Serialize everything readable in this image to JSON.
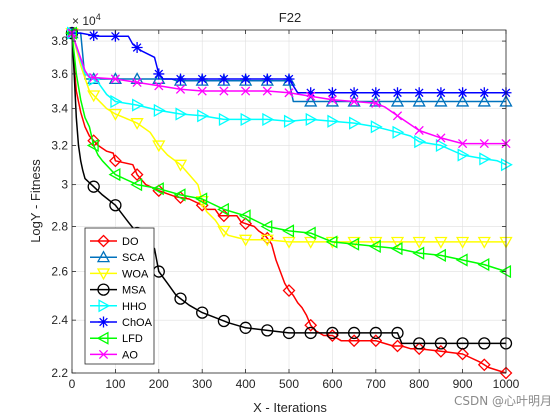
{
  "chart_data": {
    "type": "line",
    "title": "F22",
    "xlabel": "X - Iterations",
    "ylabel": "LogY - Fitness",
    "y_exponent_label": "× 10",
    "y_exponent_power": "4",
    "xlim": [
      0,
      1000
    ],
    "ylim": [
      2.2,
      3.87
    ],
    "y_scale": "log",
    "grid": true,
    "legend_position": "bottom-left",
    "x_ticks": [
      0,
      100,
      200,
      300,
      400,
      500,
      600,
      700,
      800,
      900,
      1000
    ],
    "x_tick_labels": [
      "0",
      "100",
      "200",
      "300",
      "400",
      "500",
      "600",
      "700",
      "800",
      "900",
      "1000"
    ],
    "y_ticks": [
      2.2,
      2.4,
      2.6,
      2.8,
      3.0,
      3.2,
      3.4,
      3.6,
      3.8
    ],
    "y_tick_labels": [
      "2.2",
      "2.4",
      "2.6",
      "2.8",
      "3",
      "3.2",
      "3.4",
      "3.6",
      "3.8"
    ],
    "series": [
      {
        "name": "DO",
        "color": "#ff0000",
        "marker": "diamond",
        "points": [
          [
            0,
            3.85
          ],
          [
            5,
            3.65
          ],
          [
            10,
            3.5
          ],
          [
            20,
            3.38
          ],
          [
            30,
            3.3
          ],
          [
            40,
            3.25
          ],
          [
            60,
            3.2
          ],
          [
            80,
            3.17
          ],
          [
            95,
            3.16
          ],
          [
            100,
            3.12
          ],
          [
            140,
            3.1
          ],
          [
            150,
            3.05
          ],
          [
            170,
            3.0
          ],
          [
            200,
            2.97
          ],
          [
            240,
            2.94
          ],
          [
            270,
            2.93
          ],
          [
            300,
            2.9
          ],
          [
            310,
            2.88
          ],
          [
            330,
            2.88
          ],
          [
            340,
            2.85
          ],
          [
            380,
            2.85
          ],
          [
            390,
            2.82
          ],
          [
            420,
            2.8
          ],
          [
            430,
            2.78
          ],
          [
            445,
            2.76
          ],
          [
            460,
            2.72
          ],
          [
            470,
            2.65
          ],
          [
            480,
            2.6
          ],
          [
            490,
            2.55
          ],
          [
            500,
            2.52
          ],
          [
            510,
            2.5
          ],
          [
            520,
            2.47
          ],
          [
            530,
            2.45
          ],
          [
            540,
            2.42
          ],
          [
            550,
            2.38
          ],
          [
            560,
            2.36
          ],
          [
            580,
            2.34
          ],
          [
            600,
            2.34
          ],
          [
            620,
            2.32
          ],
          [
            700,
            2.32
          ],
          [
            740,
            2.3
          ],
          [
            760,
            2.3
          ],
          [
            780,
            2.29
          ],
          [
            800,
            2.29
          ],
          [
            850,
            2.28
          ],
          [
            900,
            2.27
          ],
          [
            940,
            2.24
          ],
          [
            960,
            2.22
          ],
          [
            1000,
            2.2
          ]
        ]
      },
      {
        "name": "SCA",
        "color": "#0072bd",
        "marker": "triangle-up",
        "points": [
          [
            0,
            3.85
          ],
          [
            20,
            3.85
          ],
          [
            30,
            3.57
          ],
          [
            200,
            3.57
          ],
          [
            230,
            3.57
          ],
          [
            240,
            3.56
          ],
          [
            500,
            3.56
          ],
          [
            510,
            3.44
          ],
          [
            1000,
            3.44
          ]
        ]
      },
      {
        "name": "WOA",
        "color": "#ffff00",
        "marker": "triangle-down",
        "points": [
          [
            0,
            3.85
          ],
          [
            20,
            3.65
          ],
          [
            40,
            3.5
          ],
          [
            60,
            3.45
          ],
          [
            80,
            3.4
          ],
          [
            100,
            3.37
          ],
          [
            120,
            3.35
          ],
          [
            150,
            3.32
          ],
          [
            180,
            3.27
          ],
          [
            200,
            3.2
          ],
          [
            220,
            3.15
          ],
          [
            250,
            3.1
          ],
          [
            270,
            3.05
          ],
          [
            290,
            3.0
          ],
          [
            300,
            2.92
          ],
          [
            310,
            2.87
          ],
          [
            320,
            2.85
          ],
          [
            330,
            2.83
          ],
          [
            340,
            2.8
          ],
          [
            350,
            2.78
          ],
          [
            360,
            2.76
          ],
          [
            380,
            2.75
          ],
          [
            400,
            2.74
          ],
          [
            450,
            2.74
          ],
          [
            500,
            2.73
          ],
          [
            1000,
            2.73
          ]
        ]
      },
      {
        "name": "MSA",
        "color": "#000000",
        "marker": "circle",
        "points": [
          [
            0,
            3.85
          ],
          [
            5,
            3.6
          ],
          [
            10,
            3.35
          ],
          [
            15,
            3.2
          ],
          [
            20,
            3.12
          ],
          [
            25,
            3.07
          ],
          [
            30,
            3.03
          ],
          [
            50,
            2.99
          ],
          [
            70,
            2.95
          ],
          [
            100,
            2.9
          ],
          [
            130,
            2.82
          ],
          [
            150,
            2.77
          ],
          [
            170,
            2.73
          ],
          [
            190,
            2.7
          ],
          [
            200,
            2.6
          ],
          [
            220,
            2.55
          ],
          [
            240,
            2.5
          ],
          [
            270,
            2.46
          ],
          [
            300,
            2.43
          ],
          [
            330,
            2.41
          ],
          [
            360,
            2.39
          ],
          [
            400,
            2.37
          ],
          [
            450,
            2.36
          ],
          [
            500,
            2.35
          ],
          [
            550,
            2.35
          ],
          [
            700,
            2.35
          ],
          [
            750,
            2.35
          ],
          [
            760,
            2.31
          ],
          [
            1000,
            2.31
          ]
        ]
      },
      {
        "name": "HHO",
        "color": "#00ffff",
        "marker": "triangle-right",
        "points": [
          [
            0,
            3.85
          ],
          [
            30,
            3.6
          ],
          [
            60,
            3.55
          ],
          [
            80,
            3.48
          ],
          [
            100,
            3.44
          ],
          [
            150,
            3.42
          ],
          [
            200,
            3.39
          ],
          [
            250,
            3.37
          ],
          [
            300,
            3.36
          ],
          [
            350,
            3.34
          ],
          [
            400,
            3.34
          ],
          [
            450,
            3.34
          ],
          [
            500,
            3.33
          ],
          [
            550,
            3.34
          ],
          [
            600,
            3.33
          ],
          [
            650,
            3.32
          ],
          [
            700,
            3.3
          ],
          [
            750,
            3.27
          ],
          [
            780,
            3.25
          ],
          [
            800,
            3.22
          ],
          [
            850,
            3.2
          ],
          [
            900,
            3.15
          ],
          [
            950,
            3.13
          ],
          [
            980,
            3.12
          ],
          [
            1000,
            3.1
          ]
        ]
      },
      {
        "name": "ChOA",
        "color": "#0000ff",
        "marker": "star",
        "points": [
          [
            0,
            3.85
          ],
          [
            20,
            3.85
          ],
          [
            60,
            3.83
          ],
          [
            130,
            3.83
          ],
          [
            140,
            3.78
          ],
          [
            160,
            3.74
          ],
          [
            190,
            3.7
          ],
          [
            200,
            3.6
          ],
          [
            210,
            3.57
          ],
          [
            500,
            3.57
          ],
          [
            520,
            3.49
          ],
          [
            1000,
            3.49
          ]
        ]
      },
      {
        "name": "LFD",
        "color": "#00ff00",
        "marker": "triangle-left",
        "points": [
          [
            0,
            3.85
          ],
          [
            10,
            3.6
          ],
          [
            20,
            3.45
          ],
          [
            30,
            3.35
          ],
          [
            40,
            3.3
          ],
          [
            50,
            3.2
          ],
          [
            60,
            3.15
          ],
          [
            70,
            3.12
          ],
          [
            100,
            3.05
          ],
          [
            150,
            3.0
          ],
          [
            200,
            2.98
          ],
          [
            250,
            2.95
          ],
          [
            300,
            2.93
          ],
          [
            350,
            2.88
          ],
          [
            400,
            2.85
          ],
          [
            450,
            2.8
          ],
          [
            500,
            2.78
          ],
          [
            550,
            2.77
          ],
          [
            600,
            2.73
          ],
          [
            650,
            2.72
          ],
          [
            700,
            2.71
          ],
          [
            750,
            2.7
          ],
          [
            800,
            2.68
          ],
          [
            850,
            2.67
          ],
          [
            900,
            2.65
          ],
          [
            950,
            2.63
          ],
          [
            1000,
            2.6
          ]
        ]
      },
      {
        "name": "AO",
        "color": "#ff00ff",
        "marker": "x",
        "points": [
          [
            0,
            3.85
          ],
          [
            30,
            3.62
          ],
          [
            40,
            3.58
          ],
          [
            100,
            3.57
          ],
          [
            150,
            3.55
          ],
          [
            200,
            3.53
          ],
          [
            250,
            3.51
          ],
          [
            300,
            3.5
          ],
          [
            350,
            3.5
          ],
          [
            400,
            3.5
          ],
          [
            450,
            3.5
          ],
          [
            500,
            3.49
          ],
          [
            550,
            3.47
          ],
          [
            600,
            3.45
          ],
          [
            650,
            3.44
          ],
          [
            700,
            3.43
          ],
          [
            720,
            3.41
          ],
          [
            750,
            3.36
          ],
          [
            800,
            3.28
          ],
          [
            850,
            3.24
          ],
          [
            900,
            3.21
          ],
          [
            950,
            3.21
          ],
          [
            1000,
            3.21
          ]
        ]
      }
    ]
  },
  "watermark": "CSDN @心叶明月"
}
